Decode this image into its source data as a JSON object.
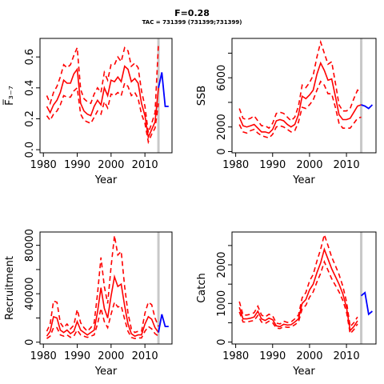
{
  "title": "F=0.28",
  "subtitle": "TAC = 731399 (731399;731399)",
  "chart_data": [
    {
      "type": "line",
      "ylabel": "F̅₃₋₇",
      "xlabel": "Year",
      "xlim": [
        1979,
        2018
      ],
      "ylim": [
        -0.02,
        0.72
      ],
      "xticks": [
        1980,
        1990,
        2000,
        2010
      ],
      "yticks": [
        0,
        0.2,
        0.4,
        0.6
      ],
      "yticklabels": [
        "0.0",
        "0.2",
        "0.4",
        "0.6"
      ],
      "grid": false,
      "vline_year": 2014,
      "x": [
        1981,
        1982,
        1983,
        1984,
        1985,
        1986,
        1987,
        1988,
        1989,
        1990,
        1991,
        1992,
        1993,
        1994,
        1995,
        1996,
        1997,
        1998,
        1999,
        2000,
        2001,
        2002,
        2003,
        2004,
        2005,
        2006,
        2007,
        2008,
        2009,
        2010,
        2011,
        2012,
        2013,
        2014
      ],
      "series": [
        {
          "values": [
            0.28,
            0.24,
            0.29,
            0.32,
            0.37,
            0.45,
            0.43,
            0.43,
            0.49,
            0.52,
            0.3,
            0.25,
            0.23,
            0.22,
            0.28,
            0.32,
            0.29,
            0.4,
            0.35,
            0.45,
            0.44,
            0.47,
            0.44,
            0.54,
            0.52,
            0.44,
            0.46,
            0.43,
            0.3,
            0.22,
            0.08,
            0.13,
            0.18,
            0.4
          ]
        },
        {
          "values": [
            0.35,
            0.3,
            0.37,
            0.41,
            0.47,
            0.55,
            0.53,
            0.55,
            0.61,
            0.66,
            0.39,
            0.33,
            0.31,
            0.3,
            0.36,
            0.4,
            0.37,
            0.5,
            0.45,
            0.55,
            0.55,
            0.6,
            0.57,
            0.66,
            0.64,
            0.54,
            0.56,
            0.53,
            0.38,
            0.28,
            0.11,
            0.17,
            0.24,
            0.69
          ]
        },
        {
          "values": [
            0.22,
            0.19,
            0.23,
            0.25,
            0.29,
            0.35,
            0.34,
            0.34,
            0.38,
            0.4,
            0.23,
            0.19,
            0.18,
            0.17,
            0.21,
            0.25,
            0.23,
            0.31,
            0.27,
            0.36,
            0.35,
            0.37,
            0.35,
            0.43,
            0.41,
            0.35,
            0.37,
            0.33,
            0.23,
            0.17,
            0.05,
            0.1,
            0.14,
            0.3
          ]
        }
      ],
      "projection": {
        "x": [
          2014,
          2015,
          2016,
          2017
        ],
        "values": [
          0.4,
          0.5,
          0.28,
          0.28
        ]
      }
    },
    {
      "type": "line",
      "ylabel": "SSB",
      "xlabel": "Year",
      "xlim": [
        1979,
        2018
      ],
      "ylim": [
        -100,
        9200
      ],
      "xticks": [
        1980,
        1990,
        2000,
        2010
      ],
      "yticks": [
        0,
        2000,
        6000
      ],
      "yticklabels": [
        "0",
        "2000",
        "6000"
      ],
      "yminorticks": [
        4000,
        8000
      ],
      "grid": false,
      "vline_year": 2014,
      "x": [
        1981,
        1982,
        1983,
        1984,
        1985,
        1986,
        1987,
        1988,
        1989,
        1990,
        1991,
        1992,
        1993,
        1994,
        1995,
        1996,
        1997,
        1998,
        1999,
        2000,
        2001,
        2002,
        2003,
        2004,
        2005,
        2006,
        2007,
        2008,
        2009,
        2010,
        2011,
        2012,
        2013,
        2014
      ],
      "series": [
        {
          "values": [
            2800,
            2100,
            2000,
            2100,
            2200,
            1900,
            1600,
            1600,
            1500,
            1800,
            2500,
            2600,
            2500,
            2200,
            2000,
            2200,
            3000,
            4500,
            4300,
            4600,
            5000,
            6300,
            7200,
            6600,
            5800,
            5900,
            4500,
            3000,
            2600,
            2600,
            2700,
            3200,
            3700,
            3800
          ]
        },
        {
          "values": [
            3500,
            2700,
            2600,
            2700,
            2900,
            2500,
            2100,
            2100,
            1900,
            2300,
            3100,
            3200,
            3100,
            2800,
            2500,
            2800,
            3700,
            5400,
            5200,
            5600,
            6200,
            7700,
            8900,
            8000,
            7100,
            7300,
            5600,
            3800,
            3300,
            3300,
            3500,
            4300,
            5000,
            4800
          ]
        },
        {
          "values": [
            2200,
            1600,
            1500,
            1700,
            1800,
            1500,
            1300,
            1200,
            1100,
            1400,
            2000,
            2100,
            2000,
            1800,
            1600,
            1700,
            2400,
            3600,
            3500,
            3800,
            4200,
            5000,
            5700,
            5400,
            4700,
            4700,
            3600,
            2300,
            1900,
            1900,
            1900,
            2300,
            2700,
            2800
          ]
        }
      ],
      "projection": {
        "x": [
          2014,
          2015,
          2016,
          2017
        ],
        "values": [
          3800,
          3700,
          3500,
          3800
        ]
      }
    },
    {
      "type": "line",
      "ylabel": "Recruitment",
      "xlabel": "Year",
      "xlim": [
        1979,
        2018
      ],
      "ylim": [
        -1500,
        91000
      ],
      "xticks": [
        1980,
        1990,
        2000,
        2010
      ],
      "yticks": [
        0,
        40000,
        80000
      ],
      "yticklabels": [
        "0",
        "40000",
        "80000"
      ],
      "yminorticks": [
        20000,
        60000
      ],
      "grid": false,
      "vline_year": 2014,
      "x": [
        1981,
        1982,
        1983,
        1984,
        1985,
        1986,
        1987,
        1988,
        1989,
        1990,
        1991,
        1992,
        1993,
        1994,
        1995,
        1996,
        1997,
        1998,
        1999,
        2000,
        2001,
        2002,
        2003,
        2004,
        2005,
        2006,
        2007,
        2008,
        2009,
        2010,
        2011,
        2012,
        2013,
        2014
      ],
      "series": [
        {
          "values": [
            5000,
            9000,
            21000,
            20000,
            10000,
            8000,
            10000,
            7000,
            9000,
            17000,
            10000,
            8000,
            6000,
            8000,
            10000,
            25000,
            45000,
            28000,
            20000,
            38000,
            54000,
            46000,
            48000,
            30000,
            15000,
            7000,
            5000,
            6000,
            6000,
            15000,
            21000,
            19000,
            12000,
            8000
          ]
        },
        {
          "values": [
            9000,
            15000,
            34000,
            33000,
            16000,
            12000,
            15000,
            11000,
            14000,
            27000,
            16000,
            12000,
            9000,
            12000,
            16000,
            40000,
            70000,
            46000,
            32000,
            62000,
            88000,
            72000,
            75000,
            46000,
            24000,
            11000,
            8000,
            9000,
            9000,
            24000,
            33000,
            31000,
            20000,
            13000
          ]
        },
        {
          "values": [
            3000,
            5000,
            12000,
            12000,
            6000,
            5000,
            6000,
            4000,
            5000,
            10000,
            6000,
            5000,
            4000,
            5000,
            6000,
            15000,
            28000,
            17000,
            12000,
            23000,
            33000,
            29000,
            30000,
            19000,
            9000,
            4000,
            3000,
            3500,
            3500,
            9000,
            13000,
            11000,
            7000,
            5000
          ]
        }
      ],
      "projection": {
        "x": [
          2014,
          2015,
          2016,
          2017
        ],
        "values": [
          8000,
          23000,
          13000,
          13000
        ]
      }
    },
    {
      "type": "line",
      "ylabel": "Catch",
      "xlabel": "Year",
      "xlim": [
        1979,
        2018
      ],
      "ylim": [
        -50,
        2850
      ],
      "xticks": [
        1980,
        1990,
        2000,
        2010
      ],
      "yticks": [
        0,
        1000,
        2000
      ],
      "yticklabels": [
        "0",
        "1000",
        "2000"
      ],
      "yminorticks": [
        500,
        1500,
        2500
      ],
      "grid": false,
      "vline_year": 2014,
      "x": [
        1981,
        1982,
        1983,
        1984,
        1985,
        1986,
        1987,
        1988,
        1989,
        1990,
        1991,
        1992,
        1993,
        1994,
        1995,
        1996,
        1997,
        1998,
        1999,
        2000,
        2001,
        2002,
        2003,
        2004,
        2005,
        2006,
        2007,
        2008,
        2009,
        2010,
        2011,
        2012,
        2013
      ],
      "series": [
        {
          "values": [
            900,
            600,
            600,
            620,
            650,
            800,
            600,
            560,
            620,
            580,
            420,
            400,
            460,
            440,
            450,
            520,
            600,
            1000,
            1100,
            1350,
            1500,
            1800,
            2050,
            2400,
            2150,
            1900,
            1700,
            1500,
            1250,
            900,
            300,
            400,
            550
          ]
        },
        {
          "values": [
            1050,
            700,
            700,
            720,
            760,
            930,
            700,
            650,
            720,
            680,
            490,
            470,
            540,
            510,
            520,
            600,
            700,
            1150,
            1280,
            1580,
            1750,
            2100,
            2400,
            2780,
            2500,
            2200,
            1980,
            1750,
            1450,
            1050,
            400,
            500,
            650
          ]
        },
        {
          "values": [
            780,
            520,
            520,
            540,
            560,
            690,
            520,
            480,
            540,
            500,
            360,
            350,
            400,
            380,
            390,
            450,
            520,
            860,
            950,
            1160,
            1300,
            1560,
            1780,
            2080,
            1860,
            1640,
            1470,
            1300,
            1080,
            780,
            220,
            320,
            470
          ]
        }
      ],
      "projection": {
        "x": [
          2014,
          2015,
          2016,
          2017
        ],
        "values": [
          1200,
          1280,
          720,
          800
        ]
      }
    }
  ]
}
